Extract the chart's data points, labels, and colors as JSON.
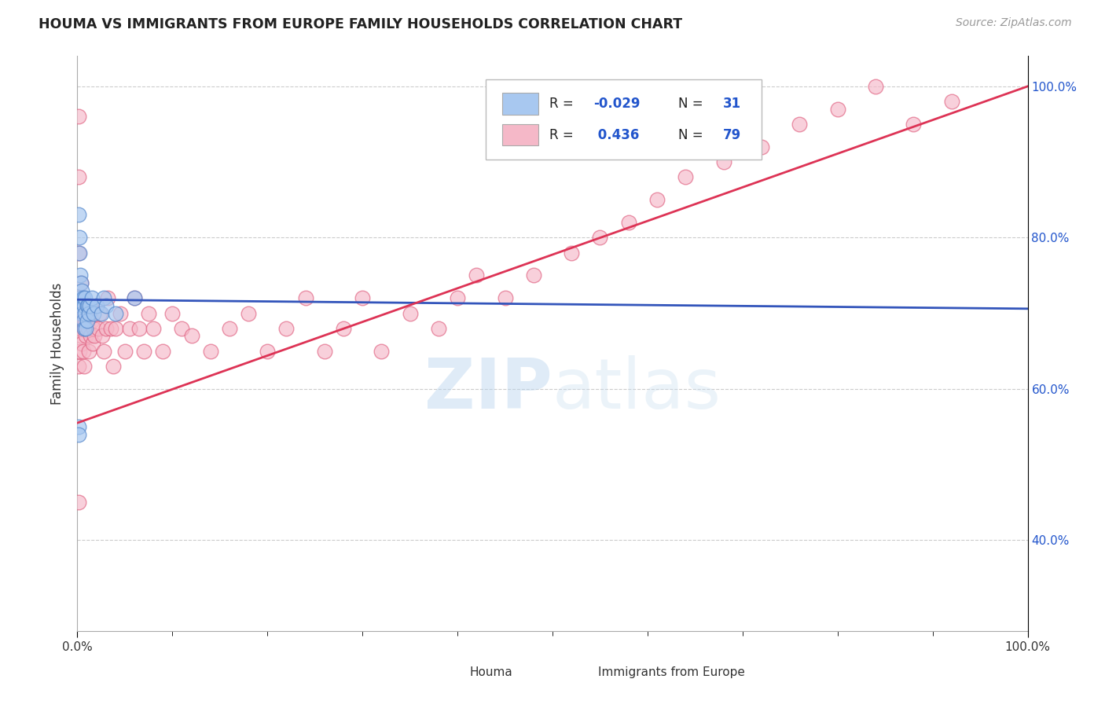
{
  "title": "HOUMA VS IMMIGRANTS FROM EUROPE FAMILY HOUSEHOLDS CORRELATION CHART",
  "source_text": "Source: ZipAtlas.com",
  "ylabel": "Family Households",
  "xlim": [
    0.0,
    1.0
  ],
  "ylim": [
    0.28,
    1.04
  ],
  "x_tick_labels": [
    "0.0%",
    "",
    "",
    "",
    "",
    "",
    "",
    "",
    "",
    "100.0%"
  ],
  "x_tick_vals": [
    0.0,
    0.1,
    0.2,
    0.3,
    0.4,
    0.5,
    0.6,
    0.7,
    0.8,
    1.0
  ],
  "y_tick_labels": [
    "40.0%",
    "60.0%",
    "80.0%",
    "100.0%"
  ],
  "y_tick_vals": [
    0.4,
    0.6,
    0.8,
    1.0
  ],
  "houma_R": -0.029,
  "houma_N": 31,
  "immig_R": 0.436,
  "immig_N": 79,
  "houma_color": "#a8c8f0",
  "houma_edge_color": "#5588cc",
  "immig_color": "#f5b8c8",
  "immig_edge_color": "#e06080",
  "houma_line_color": "#3355bb",
  "immig_line_color": "#dd3355",
  "legend_text_color": "#222222",
  "legend_val_color": "#2255cc",
  "background_color": "#ffffff",
  "grid_color": "#cccccc",
  "watermark_color": "#d0e4f5",
  "houma_x": [
    0.001,
    0.001,
    0.002,
    0.002,
    0.003,
    0.003,
    0.004,
    0.004,
    0.005,
    0.005,
    0.006,
    0.006,
    0.007,
    0.007,
    0.008,
    0.008,
    0.009,
    0.01,
    0.01,
    0.011,
    0.012,
    0.013,
    0.015,
    0.017,
    0.02,
    0.025,
    0.028,
    0.03,
    0.04,
    0.06,
    0.001
  ],
  "houma_y": [
    0.55,
    0.83,
    0.8,
    0.78,
    0.75,
    0.72,
    0.74,
    0.71,
    0.73,
    0.7,
    0.72,
    0.69,
    0.71,
    0.68,
    0.72,
    0.7,
    0.68,
    0.71,
    0.69,
    0.71,
    0.7,
    0.71,
    0.72,
    0.7,
    0.71,
    0.7,
    0.72,
    0.71,
    0.7,
    0.72,
    0.54
  ],
  "immig_x": [
    0.001,
    0.001,
    0.001,
    0.002,
    0.002,
    0.003,
    0.003,
    0.004,
    0.004,
    0.005,
    0.005,
    0.006,
    0.006,
    0.007,
    0.007,
    0.008,
    0.009,
    0.01,
    0.011,
    0.012,
    0.013,
    0.014,
    0.015,
    0.016,
    0.017,
    0.018,
    0.02,
    0.022,
    0.024,
    0.026,
    0.028,
    0.03,
    0.032,
    0.035,
    0.038,
    0.04,
    0.045,
    0.05,
    0.055,
    0.06,
    0.065,
    0.07,
    0.075,
    0.08,
    0.09,
    0.1,
    0.11,
    0.12,
    0.14,
    0.16,
    0.18,
    0.2,
    0.22,
    0.24,
    0.26,
    0.28,
    0.3,
    0.32,
    0.35,
    0.38,
    0.4,
    0.42,
    0.45,
    0.48,
    0.52,
    0.55,
    0.58,
    0.61,
    0.64,
    0.68,
    0.72,
    0.76,
    0.8,
    0.84,
    0.88,
    0.92,
    0.001,
    0.001,
    0.001
  ],
  "immig_y": [
    0.63,
    0.72,
    0.78,
    0.65,
    0.7,
    0.68,
    0.72,
    0.67,
    0.74,
    0.66,
    0.71,
    0.65,
    0.7,
    0.68,
    0.63,
    0.69,
    0.67,
    0.71,
    0.68,
    0.65,
    0.7,
    0.67,
    0.69,
    0.66,
    0.68,
    0.67,
    0.71,
    0.68,
    0.7,
    0.67,
    0.65,
    0.68,
    0.72,
    0.68,
    0.63,
    0.68,
    0.7,
    0.65,
    0.68,
    0.72,
    0.68,
    0.65,
    0.7,
    0.68,
    0.65,
    0.7,
    0.68,
    0.67,
    0.65,
    0.68,
    0.7,
    0.65,
    0.68,
    0.72,
    0.65,
    0.68,
    0.72,
    0.65,
    0.7,
    0.68,
    0.72,
    0.75,
    0.72,
    0.75,
    0.78,
    0.8,
    0.82,
    0.85,
    0.88,
    0.9,
    0.92,
    0.95,
    0.97,
    1.0,
    0.95,
    0.98,
    0.88,
    0.96,
    0.45
  ],
  "blue_line": {
    "x0": 0.0,
    "x1": 1.0,
    "y0": 0.718,
    "y1": 0.706
  },
  "pink_line": {
    "x0": 0.0,
    "x1": 1.0,
    "y0": 0.555,
    "y1": 1.0
  }
}
